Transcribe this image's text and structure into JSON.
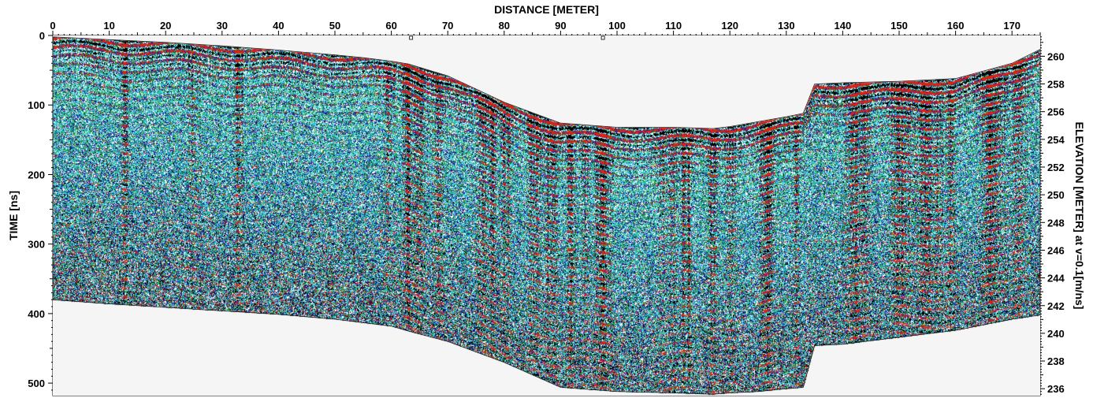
{
  "chart_data": {
    "type": "heatmap",
    "description_visible": false,
    "x_axis": {
      "label": "DISTANCE [METER]",
      "position": "top",
      "ticks": [
        0,
        10,
        20,
        30,
        40,
        50,
        60,
        70,
        80,
        90,
        100,
        110,
        120,
        130,
        140,
        150,
        160,
        170
      ],
      "range": [
        0,
        175
      ]
    },
    "y_axis_left": {
      "label": "TIME [ns]",
      "ticks": [
        0,
        100,
        200,
        300,
        400,
        500
      ],
      "range": [
        0,
        518
      ]
    },
    "y_axis_right": {
      "label": "ELEVATION [METER] at v=0.1[m/ns]",
      "ticks": [
        236,
        238,
        240,
        242,
        244,
        246,
        248,
        250,
        252,
        254,
        256,
        258,
        260
      ],
      "range": [
        235.5,
        261.5
      ]
    },
    "surface_profile": {
      "x": [
        0,
        10,
        20,
        30,
        40,
        50,
        55,
        60,
        63,
        70,
        80,
        90,
        100,
        110,
        117,
        120,
        125,
        130,
        133,
        135,
        140,
        150,
        160,
        170,
        175
      ],
      "top_time": [
        2,
        6,
        10,
        15,
        21,
        28,
        32,
        37,
        41,
        58,
        96,
        126,
        132,
        132,
        134,
        131,
        124,
        117,
        112,
        70,
        68,
        66,
        62,
        40,
        20
      ],
      "bottom_time": [
        380,
        386,
        391,
        396,
        401,
        408,
        413,
        418,
        425,
        440,
        470,
        506,
        512,
        514,
        516,
        514,
        512,
        508,
        506,
        446,
        444,
        434,
        424,
        408,
        402
      ]
    },
    "markers": {
      "x": [
        63.5,
        97.5
      ]
    },
    "palette": {
      "strong_positive": "#e02010",
      "strong_negative": "#000000",
      "mid": "#1a1aa0",
      "weak_a": "#2aa02a",
      "weak_b": "#35c7d6",
      "background": "#f5f5f5"
    },
    "grid": false,
    "legend": "none"
  }
}
